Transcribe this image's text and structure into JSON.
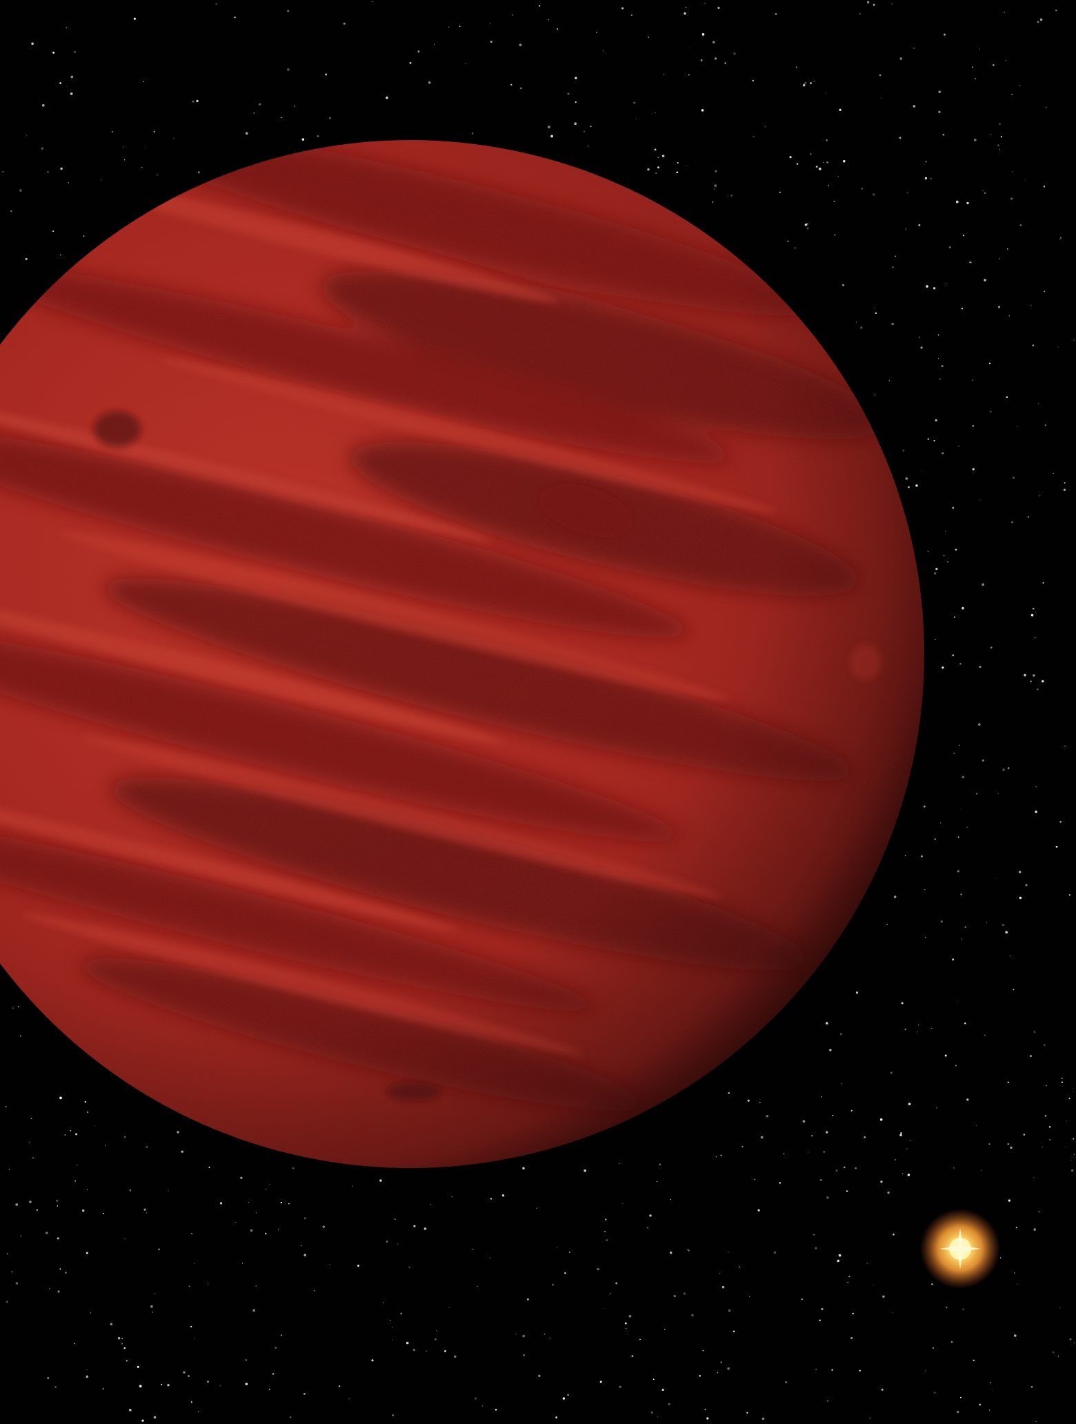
{
  "scene": {
    "subject": "red-banded-planet",
    "companion": "distant-orange-star",
    "colors": {
      "space": "#020102",
      "planet_light": "#c8362a",
      "planet_mid": "#a3221c",
      "planet_dark": "#5e0d0c",
      "planet_limb": "#3a0606",
      "star_core": "#fff3a8",
      "star_glow": "#f39a32",
      "star_speck": "#ffffff"
    }
  }
}
